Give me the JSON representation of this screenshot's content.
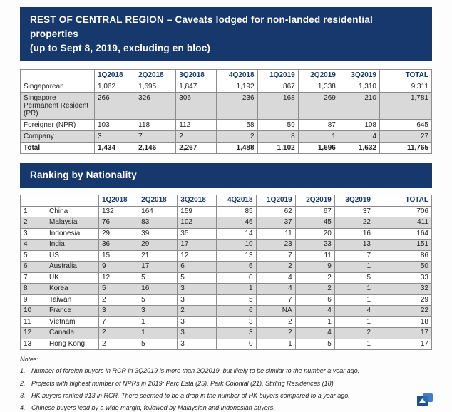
{
  "accent_color": "#17386c",
  "row_shade_color": "#d9d9d9",
  "caveats": {
    "banner_line1": "REST OF CENTRAL REGION – Caveats lodged for non-landed residential properties",
    "banner_line2": "(up to Sept 8, 2019, excluding en bloc)"
  },
  "caveats_table": {
    "columns": [
      "",
      "1Q2018",
      "2Q2018",
      "3Q2018",
      "4Q2018",
      "1Q2019",
      "2Q2019",
      "3Q2019",
      "TOTAL"
    ],
    "rows": [
      {
        "label": "Singaporean",
        "values": [
          "1,062",
          "1,695",
          "1,847",
          "1,192",
          "867",
          "1,338",
          "1,310",
          "9,311"
        ]
      },
      {
        "label": "Singapore Permanent Resident (PR)",
        "values": [
          "266",
          "326",
          "306",
          "236",
          "168",
          "269",
          "210",
          "1,781"
        ]
      },
      {
        "label": "Foreigner (NPR)",
        "values": [
          "103",
          "118",
          "112",
          "58",
          "59",
          "87",
          "108",
          "645"
        ]
      },
      {
        "label": "Company",
        "values": [
          "3",
          "7",
          "2",
          "2",
          "8",
          "1",
          "4",
          "27"
        ]
      },
      {
        "label": "Total",
        "values": [
          "1,434",
          "2,146",
          "2,267",
          "1,488",
          "1,102",
          "1,696",
          "1,632",
          "11,765"
        ]
      }
    ]
  },
  "ranking": {
    "banner_title": "Ranking by Nationality"
  },
  "ranking_table": {
    "columns": [
      "",
      "",
      "1Q2018",
      "2Q2018",
      "3Q2018",
      "4Q2018",
      "1Q2019",
      "2Q2019",
      "3Q2019",
      "TOTAL"
    ],
    "rows": [
      {
        "rank": "1",
        "country": "China",
        "values": [
          "132",
          "164",
          "159",
          "85",
          "62",
          "67",
          "37",
          "706"
        ]
      },
      {
        "rank": "2",
        "country": "Malaysia",
        "values": [
          "76",
          "83",
          "102",
          "46",
          "37",
          "45",
          "22",
          "411"
        ]
      },
      {
        "rank": "3",
        "country": "Indonesia",
        "values": [
          "29",
          "39",
          "35",
          "14",
          "11",
          "20",
          "16",
          "164"
        ]
      },
      {
        "rank": "4",
        "country": "India",
        "values": [
          "36",
          "29",
          "17",
          "10",
          "23",
          "23",
          "13",
          "151"
        ]
      },
      {
        "rank": "5",
        "country": "US",
        "values": [
          "15",
          "21",
          "12",
          "13",
          "7",
          "11",
          "7",
          "86"
        ]
      },
      {
        "rank": "6",
        "country": "Australia",
        "values": [
          "9",
          "17",
          "6",
          "6",
          "2",
          "9",
          "1",
          "50"
        ]
      },
      {
        "rank": "7",
        "country": "UK",
        "values": [
          "12",
          "5",
          "5",
          "0",
          "4",
          "2",
          "5",
          "33"
        ]
      },
      {
        "rank": "8",
        "country": "Korea",
        "values": [
          "5",
          "16",
          "3",
          "1",
          "4",
          "2",
          "1",
          "32"
        ]
      },
      {
        "rank": "9",
        "country": "Taiwan",
        "values": [
          "2",
          "5",
          "3",
          "5",
          "7",
          "6",
          "1",
          "29"
        ]
      },
      {
        "rank": "10",
        "country": "France",
        "values": [
          "3",
          "3",
          "2",
          "6",
          "NA",
          "4",
          "4",
          "22"
        ]
      },
      {
        "rank": "11",
        "country": "Vietnam",
        "values": [
          "7",
          "1",
          "3",
          "3",
          "2",
          "1",
          "1",
          "18"
        ]
      },
      {
        "rank": "12",
        "country": "Canada",
        "values": [
          "2",
          "1",
          "3",
          "3",
          "2",
          "4",
          "2",
          "17"
        ]
      },
      {
        "rank": "13",
        "country": "Hong Kong",
        "values": [
          "2",
          "5",
          "3",
          "0",
          "1",
          "5",
          "1",
          "17"
        ]
      }
    ]
  },
  "notes": {
    "heading": "Notes:",
    "items": [
      {
        "num": "1.",
        "text": "Number of foreign buyers in RCR in 3Q2019 is more than 2Q2019, but likely to be similar to the number a year ago."
      },
      {
        "num": "2.",
        "text": "Projects with highest number of NPRs in 2019: Parc Esta (25), Park Colonial (21), Stirling Residences (18)."
      },
      {
        "num": "3.",
        "text": "HK buyers ranked #13 in RCR.  There seemed to be a drop in the number of HK buyers compared to a year ago."
      },
      {
        "num": "4.",
        "text": "Chinese buyers lead by a wide margin, followed by Malaysian and Indonesian buyers."
      }
    ]
  },
  "footer": {
    "logo_icon": "company-logo-icon"
  }
}
